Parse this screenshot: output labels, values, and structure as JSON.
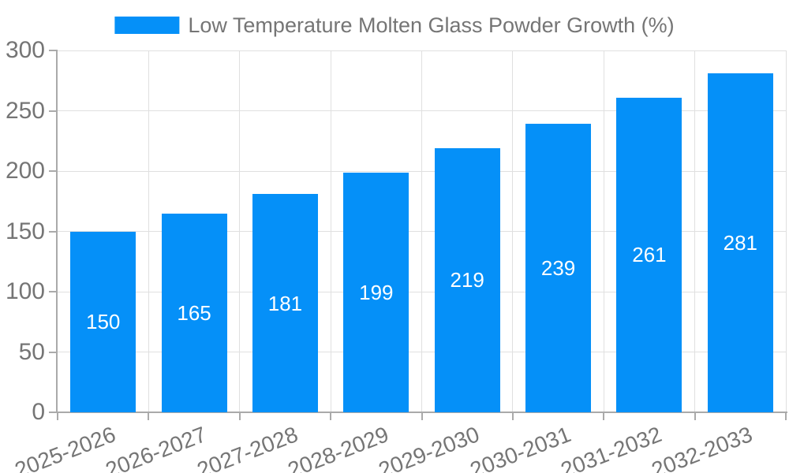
{
  "legend": {
    "label": "Low Temperature Molten Glass Powder Growth (%)"
  },
  "colors": {
    "bar": "#0590f8",
    "value_label": "#ffffff",
    "axis_text": "#757575",
    "grid_line": "#e0e0e0",
    "axis_line": "#aaaaaa",
    "background": "#ffffff"
  },
  "chart_data": {
    "type": "bar",
    "title": "Low Temperature Molten Glass Powder Growth (%)",
    "categories": [
      "2025-2026",
      "2026-2027",
      "2027-2028",
      "2028-2029",
      "2029-2030",
      "2030-2031",
      "2031-2032",
      "2032-2033"
    ],
    "values": [
      150,
      165,
      181,
      199,
      219,
      239,
      261,
      281
    ],
    "bar_value_labels": [
      "150",
      "165",
      "181",
      "199",
      "219",
      "239",
      "261",
      "281"
    ],
    "xlabel": "",
    "ylabel": "",
    "ylim": [
      0,
      300
    ],
    "yticks": [
      0,
      50,
      100,
      150,
      200,
      250,
      300
    ],
    "grid": "horizontal-and-vertical",
    "legend_position": "top-center",
    "x_label_rotation_deg": -21
  }
}
